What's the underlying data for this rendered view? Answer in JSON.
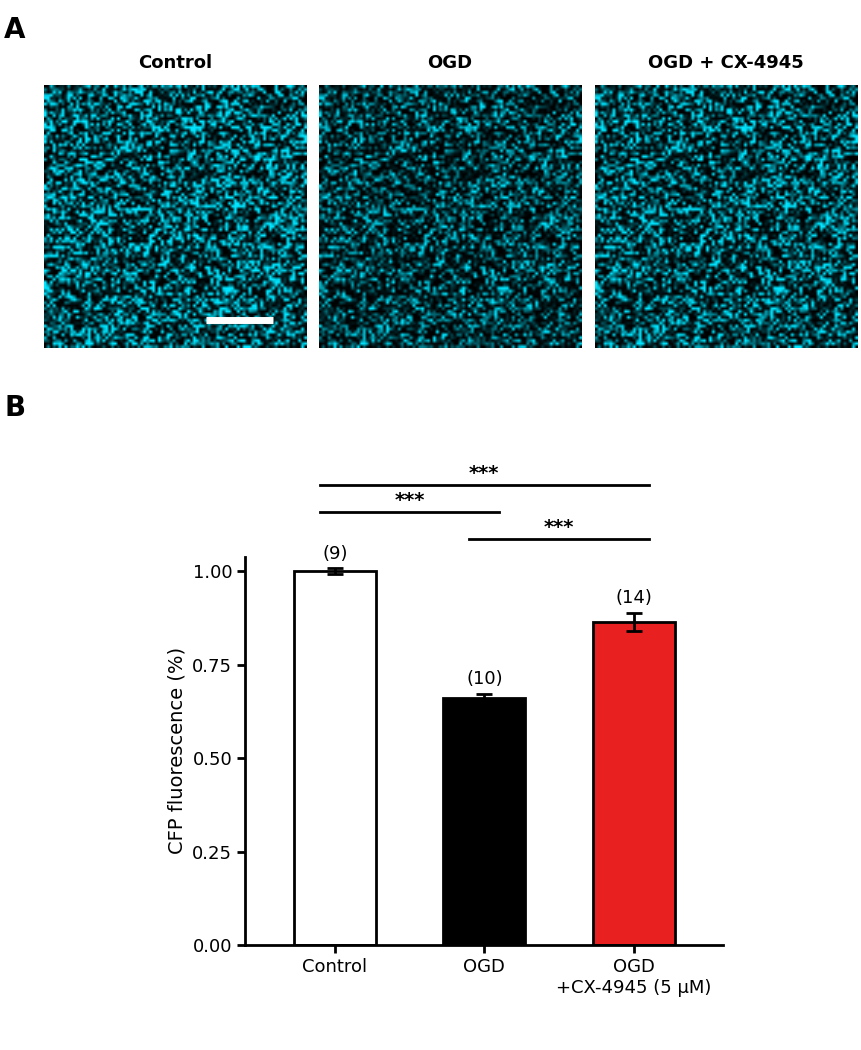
{
  "panels": {
    "a": {
      "label": "A",
      "images": [
        "Control",
        "OGD",
        "OGD + CX-4945"
      ]
    },
    "b": {
      "label": "B"
    }
  },
  "chart_data": {
    "type": "bar",
    "categories": [
      "Control",
      "OGD",
      "OGD\n+CX-4945 (5 μM)"
    ],
    "values": [
      1.0,
      0.66,
      0.865
    ],
    "errors": [
      0.008,
      0.012,
      0.025
    ],
    "n_labels": [
      "(9)",
      "(10)",
      "(14)"
    ],
    "colors": [
      "#ffffff",
      "#000000",
      "#e8201f"
    ],
    "y_label": "CFP fluorescence (%)",
    "ylim": [
      0,
      1.04
    ],
    "yticks": [
      {
        "value": 0,
        "label": "0.00"
      },
      {
        "value": 0.25,
        "label": "0.25"
      },
      {
        "value": 0.5,
        "label": "0.50"
      },
      {
        "value": 0.75,
        "label": "0.75"
      },
      {
        "value": 1.0,
        "label": "1.00"
      }
    ],
    "significance": [
      {
        "from": 1,
        "to": 2,
        "label": "***"
      },
      {
        "from": 0,
        "to": 1,
        "label": "***"
      },
      {
        "from": 0,
        "to": 2,
        "label": "***"
      }
    ]
  }
}
